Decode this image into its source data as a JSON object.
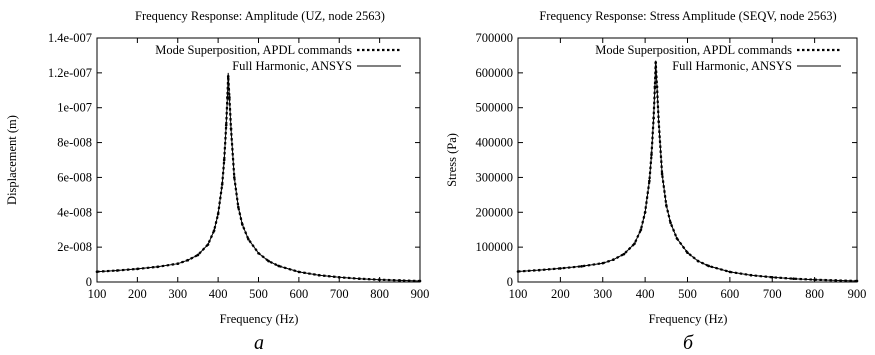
{
  "chart_data": [
    {
      "type": "line",
      "panel_label": "а",
      "title": "Frequency Response: Amplitude (UZ, node 2563)",
      "xlabel": "Frequency (Hz)",
      "ylabel": "Displacement (m)",
      "xlim": [
        100,
        900
      ],
      "ylim": [
        0,
        1.4e-07
      ],
      "x_ticks": [
        "100",
        "200",
        "300",
        "400",
        "500",
        "600",
        "700",
        "800",
        "900"
      ],
      "y_ticks": [
        "0",
        "2e-008",
        "4e-008",
        "6e-008",
        "8e-008",
        "1e-007",
        "1.2e-007",
        "1.4e-007"
      ],
      "legend_position": "top-right",
      "x": [
        100,
        150,
        200,
        250,
        300,
        325,
        350,
        375,
        390,
        400,
        410,
        415,
        420,
        423,
        425,
        428,
        432,
        440,
        450,
        460,
        475,
        500,
        525,
        550,
        600,
        650,
        700,
        750,
        800,
        850,
        900
      ],
      "series": [
        {
          "name": "Mode Superposition, APDL commands",
          "style": "dotted",
          "values": [
            5.9e-09,
            6.6e-09,
            7.5e-09,
            8.7e-09,
            1.05e-08,
            1.25e-08,
            1.55e-08,
            2.15e-08,
            2.95e-08,
            3.9e-08,
            5.6e-08,
            7e-08,
            9e-08,
            1.06e-07,
            1.18e-07,
            1.06e-07,
            8.8e-08,
            6e-08,
            4.3e-08,
            3.3e-08,
            2.45e-08,
            1.65e-08,
            1.2e-08,
            9.2e-09,
            5.8e-09,
            3.9e-09,
            2.7e-09,
            1.9e-09,
            1.3e-09,
            9e-10,
            6e-10
          ]
        },
        {
          "name": "Full Harmonic, ANSYS",
          "style": "solid",
          "values": [
            5.9e-09,
            6.6e-09,
            7.5e-09,
            8.7e-09,
            1.05e-08,
            1.25e-08,
            1.55e-08,
            2.15e-08,
            2.95e-08,
            3.9e-08,
            5.6e-08,
            7e-08,
            9e-08,
            1.06e-07,
            1.2e-07,
            1.06e-07,
            8.8e-08,
            6e-08,
            4.3e-08,
            3.3e-08,
            2.45e-08,
            1.65e-08,
            1.2e-08,
            9.2e-09,
            5.8e-09,
            3.9e-09,
            2.7e-09,
            1.9e-09,
            1.3e-09,
            9e-10,
            6e-10
          ]
        }
      ]
    },
    {
      "type": "line",
      "panel_label": "б",
      "title": "Frequency Response: Stress Amplitude (SEQV, node 2563)",
      "xlabel": "Frequency (Hz)",
      "ylabel": "Stress (Pa)",
      "xlim": [
        100,
        900
      ],
      "ylim": [
        0,
        700000
      ],
      "x_ticks": [
        "100",
        "200",
        "300",
        "400",
        "500",
        "600",
        "700",
        "800",
        "900"
      ],
      "y_ticks": [
        "0",
        "100000",
        "200000",
        "300000",
        "400000",
        "500000",
        "600000",
        "700000"
      ],
      "legend_position": "top-right",
      "x": [
        100,
        150,
        200,
        250,
        300,
        325,
        350,
        375,
        390,
        400,
        410,
        415,
        420,
        423,
        425,
        428,
        432,
        440,
        450,
        460,
        475,
        500,
        525,
        550,
        600,
        650,
        700,
        750,
        800,
        850,
        900
      ],
      "series": [
        {
          "name": "Mode Superposition, APDL commands",
          "style": "dotted",
          "values": [
            30000,
            34000,
            39000,
            45000,
            54000,
            64000,
            80000,
            110000,
            150000,
            200000,
            290000,
            365000,
            470000,
            560000,
            630000,
            560000,
            460000,
            310000,
            220000,
            170000,
            125000,
            84000,
            60000,
            46000,
            29000,
            19500,
            13500,
            9500,
            6500,
            4500,
            3000
          ]
        },
        {
          "name": "Full Harmonic, ANSYS",
          "style": "solid",
          "values": [
            30000,
            34000,
            39000,
            45000,
            54000,
            64000,
            80000,
            110000,
            150000,
            200000,
            290000,
            365000,
            470000,
            560000,
            635000,
            560000,
            460000,
            310000,
            220000,
            170000,
            125000,
            84000,
            60000,
            46000,
            29000,
            19500,
            13500,
            9500,
            6500,
            4500,
            3000
          ]
        }
      ]
    }
  ]
}
